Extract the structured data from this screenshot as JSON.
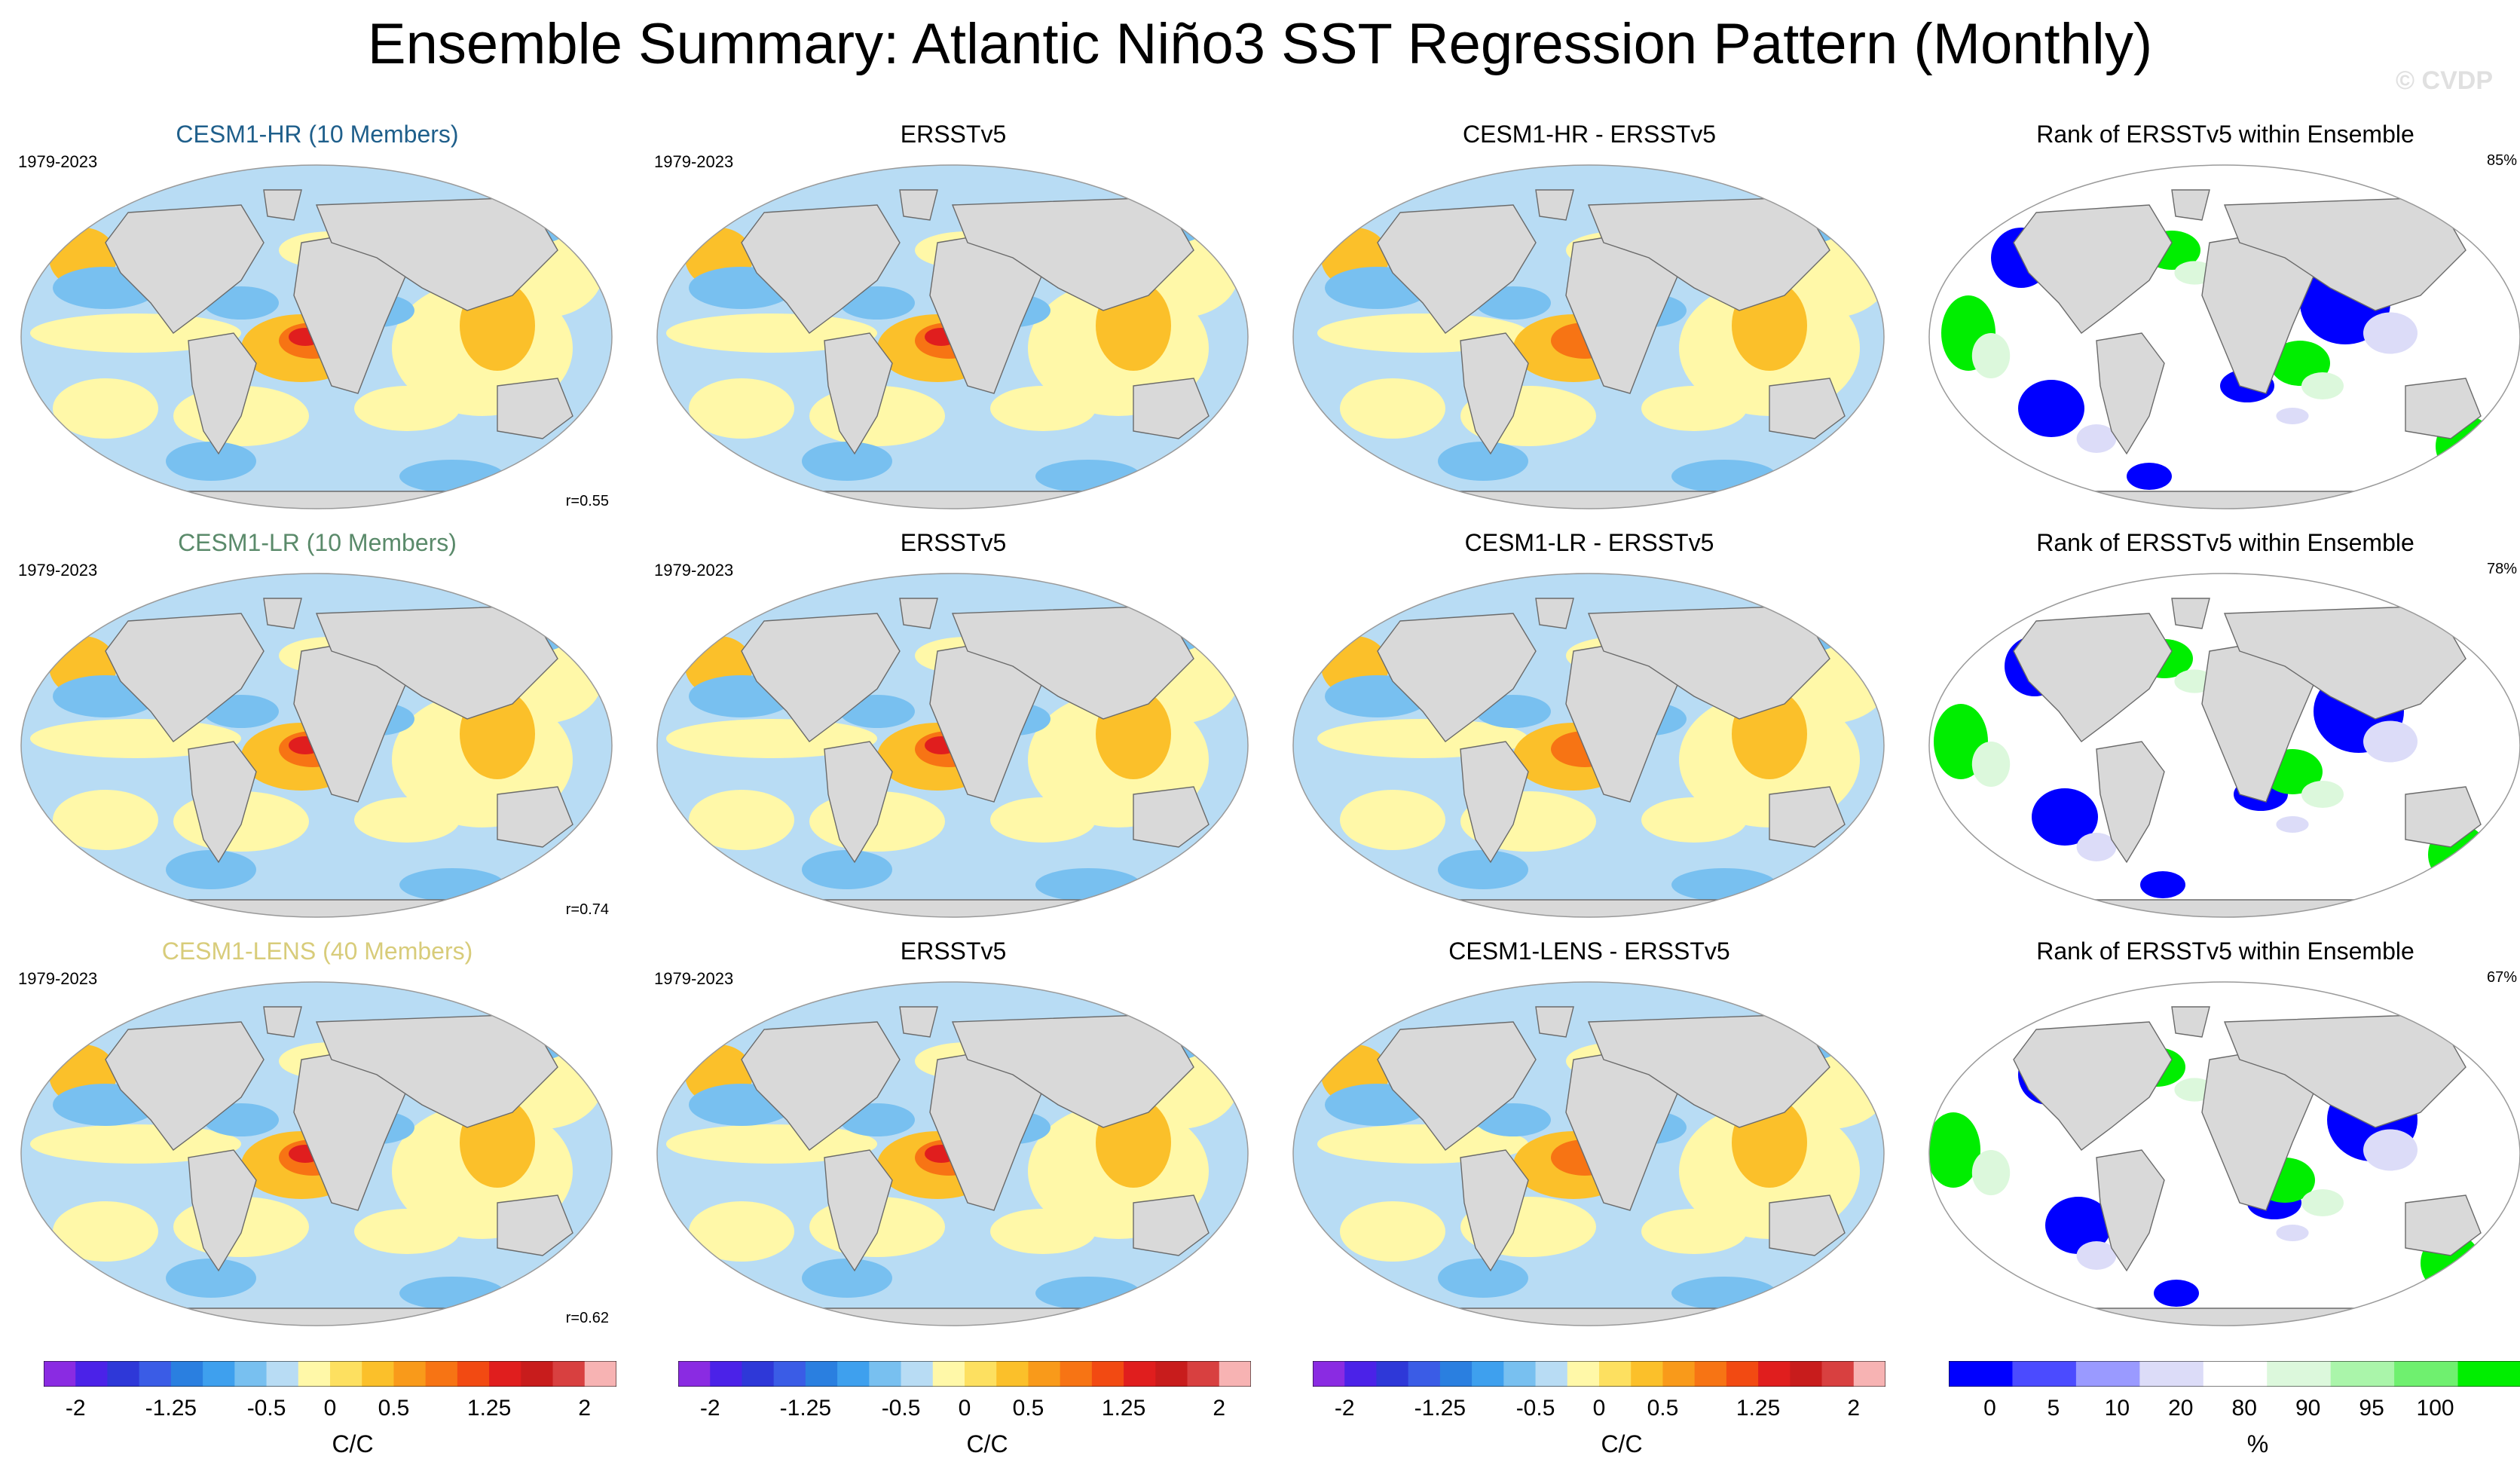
{
  "title": "Ensemble Summary: Atlantic Niño3 SST Regression Pattern (Monthly)",
  "watermark": "© CVDP",
  "colors": {
    "cesm1_hr": "#1f5f8b",
    "cesm1_lr": "#5a8a6a",
    "cesm1_lens": "#d8cc7a",
    "land": "#d9d9d9",
    "diverging": [
      "#8a2be2",
      "#4b22e8",
      "#2e38d8",
      "#3a5ce6",
      "#2a7fe0",
      "#3ea0ee",
      "#78c0f0",
      "#b8dcf4",
      "#fff8a8",
      "#fde060",
      "#fbc02a",
      "#f99a1a",
      "#f77414",
      "#f24a12",
      "#e01e1e",
      "#c81c1c",
      "#d84040",
      "#f7b3b3"
    ],
    "rank": [
      "#0000ff",
      "#4b4bff",
      "#9a9aff",
      "#dcdcf8",
      "#ffffff",
      "#dcf8dc",
      "#aaf5aa",
      "#6ff06f",
      "#00ee00"
    ]
  },
  "rows": [
    {
      "model": "CESM1-HR (10 Members)",
      "model_color": "#1f5f8b",
      "years": "1979-2023",
      "obs_title": "ERSSTv5",
      "obs_years": "1979-2023",
      "diff_title": "CESM1-HR - ERSSTv5",
      "rank_title": "Rank of ERSSTv5 within Ensemble",
      "pattern_corr": "r=0.55",
      "rank_pct": "85%"
    },
    {
      "model": "CESM1-LR (10 Members)",
      "model_color": "#5a8a6a",
      "years": "1979-2023",
      "obs_title": "ERSSTv5",
      "obs_years": "1979-2023",
      "diff_title": "CESM1-LR - ERSSTv5",
      "rank_title": "Rank of ERSSTv5 within Ensemble",
      "pattern_corr": "r=0.74",
      "rank_pct": "78%"
    },
    {
      "model": "CESM1-LENS (40 Members)",
      "model_color": "#d8cc7a",
      "years": "1979-2023",
      "obs_title": "ERSSTv5",
      "obs_years": "1979-2023",
      "diff_title": "CESM1-LENS - ERSSTv5",
      "rank_title": "Rank of ERSSTv5 within Ensemble",
      "pattern_corr": "r=0.62",
      "rank_pct": "67%"
    }
  ],
  "colorbars": {
    "regression": {
      "unit": "C/C",
      "ticks": [
        "-2",
        "-1.25",
        "-0.5",
        "0",
        "0.5",
        "1.25",
        "2"
      ]
    },
    "rank": {
      "unit": "%",
      "ticks": [
        "0",
        "5",
        "10",
        "20",
        "80",
        "90",
        "95",
        "100"
      ]
    }
  }
}
